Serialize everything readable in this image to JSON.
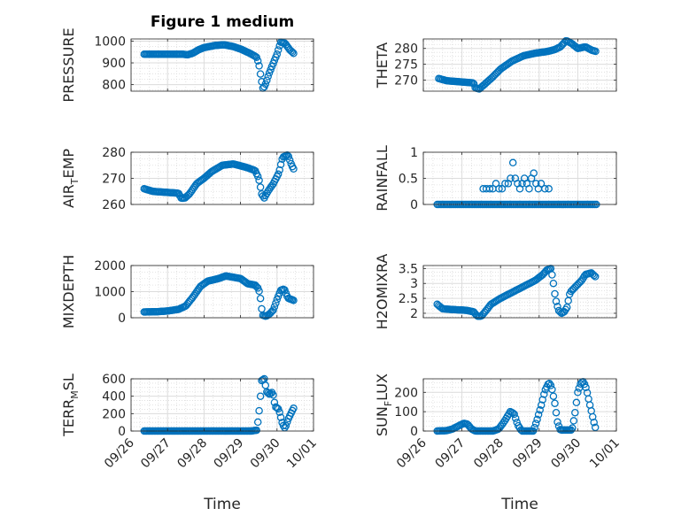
{
  "figure_title": "Figure 1 medium",
  "style": {
    "marker_color": "#0072BD",
    "grid_color": "#dcdcdc",
    "axis_color": "#262626"
  },
  "chart_data": [
    {
      "type": "scatter",
      "title": "Figure 1 medium",
      "ylabel": "PRESSURE",
      "ylim": [
        770,
        1010
      ],
      "yticks": [
        800,
        900,
        1000
      ],
      "ytick_labels": [
        "800",
        "900",
        "1000"
      ],
      "xlim": [
        0,
        5
      ],
      "grid": true,
      "keys": [
        [
          0.36,
          940
        ],
        [
          0.6,
          940
        ],
        [
          1.0,
          940
        ],
        [
          1.4,
          940
        ],
        [
          1.55,
          937
        ],
        [
          1.7,
          945
        ],
        [
          1.85,
          960
        ],
        [
          2.0,
          970
        ],
        [
          2.3,
          980
        ],
        [
          2.55,
          983
        ],
        [
          2.8,
          975
        ],
        [
          3.05,
          960
        ],
        [
          3.3,
          940
        ],
        [
          3.45,
          925
        ],
        [
          3.52,
          880
        ],
        [
          3.56,
          830
        ],
        [
          3.62,
          780
        ],
        [
          3.68,
          800
        ],
        [
          3.78,
          850
        ],
        [
          3.9,
          900
        ],
        [
          4.0,
          940
        ],
        [
          4.1,
          995
        ],
        [
          4.22,
          990
        ],
        [
          4.35,
          960
        ],
        [
          4.48,
          940
        ]
      ]
    },
    {
      "type": "scatter",
      "ylabel": "THETA",
      "ylim": [
        266.5,
        283
      ],
      "yticks": [
        270,
        275,
        280
      ],
      "ytick_labels": [
        "270",
        "275",
        "280"
      ],
      "xlim": [
        0,
        5
      ],
      "grid": true,
      "keys": [
        [
          0.4,
          270.5
        ],
        [
          0.6,
          269.8
        ],
        [
          1.0,
          269.4
        ],
        [
          1.3,
          269.1
        ],
        [
          1.35,
          267.5
        ],
        [
          1.45,
          267.2
        ],
        [
          1.6,
          268.8
        ],
        [
          1.8,
          271
        ],
        [
          2.0,
          273.5
        ],
        [
          2.3,
          276
        ],
        [
          2.6,
          277.7
        ],
        [
          2.9,
          278.5
        ],
        [
          3.2,
          279
        ],
        [
          3.4,
          279.6
        ],
        [
          3.55,
          280.5
        ],
        [
          3.7,
          282.5
        ],
        [
          3.85,
          281.5
        ],
        [
          4.0,
          280
        ],
        [
          4.2,
          280.5
        ],
        [
          4.35,
          279.5
        ],
        [
          4.48,
          279
        ]
      ]
    },
    {
      "type": "scatter",
      "ylabel": "AIR_TEMP",
      "ylim": [
        260,
        280
      ],
      "yticks": [
        260,
        270,
        280
      ],
      "ytick_labels": [
        "260",
        "270",
        "280"
      ],
      "xlim": [
        0,
        5
      ],
      "grid": true,
      "keys": [
        [
          0.36,
          266
        ],
        [
          0.6,
          265
        ],
        [
          1.0,
          264.6
        ],
        [
          1.3,
          264.3
        ],
        [
          1.38,
          262.3
        ],
        [
          1.48,
          262.5
        ],
        [
          1.6,
          264
        ],
        [
          1.8,
          268
        ],
        [
          2.0,
          270
        ],
        [
          2.2,
          272.5
        ],
        [
          2.5,
          275
        ],
        [
          2.8,
          275.5
        ],
        [
          3.0,
          274.8
        ],
        [
          3.2,
          274
        ],
        [
          3.4,
          273
        ],
        [
          3.5,
          270
        ],
        [
          3.58,
          264
        ],
        [
          3.65,
          262.5
        ],
        [
          3.75,
          265
        ],
        [
          3.9,
          268
        ],
        [
          4.05,
          272
        ],
        [
          4.15,
          278
        ],
        [
          4.3,
          279
        ],
        [
          4.4,
          275
        ],
        [
          4.48,
          273
        ]
      ]
    },
    {
      "type": "scatter",
      "ylabel": "RAINFALL",
      "ylim": [
        0,
        1
      ],
      "yticks": [
        0,
        0.5,
        1
      ],
      "ytick_labels": [
        "0",
        "0.5",
        "1"
      ],
      "xlim": [
        0,
        5
      ],
      "grid": true,
      "series": [
        {
          "x": [
            0.36,
            4.48
          ],
          "y": [
            0,
            0
          ],
          "step": 0.04
        },
        {
          "x": [
            1.55,
            1.63,
            1.72,
            1.8,
            1.88,
            1.96,
            2.04,
            2.12,
            2.2,
            2.26,
            2.32,
            2.38,
            2.44,
            2.5,
            2.56,
            2.62,
            2.68,
            2.74,
            2.8,
            2.86,
            2.92,
            2.98,
            3.05,
            3.15,
            3.25
          ],
          "y": [
            0.3,
            0.3,
            0.3,
            0.3,
            0.4,
            0.3,
            0.3,
            0.4,
            0.4,
            0.5,
            0.8,
            0.5,
            0.4,
            0.3,
            0.4,
            0.5,
            0.4,
            0.3,
            0.5,
            0.6,
            0.4,
            0.3,
            0.4,
            0.3,
            0.3
          ]
        }
      ]
    },
    {
      "type": "scatter",
      "ylabel": "MIXDEPTH",
      "ylim": [
        0,
        2000
      ],
      "yticks": [
        0,
        1000,
        2000
      ],
      "ytick_labels": [
        "0",
        "1000",
        "2000"
      ],
      "xlim": [
        0,
        5
      ],
      "grid": true,
      "keys": [
        [
          0.36,
          220
        ],
        [
          0.7,
          230
        ],
        [
          1.0,
          260
        ],
        [
          1.3,
          320
        ],
        [
          1.5,
          450
        ],
        [
          1.7,
          800
        ],
        [
          1.9,
          1200
        ],
        [
          2.1,
          1400
        ],
        [
          2.4,
          1500
        ],
        [
          2.6,
          1600
        ],
        [
          2.8,
          1550
        ],
        [
          3.0,
          1500
        ],
        [
          3.2,
          1300
        ],
        [
          3.4,
          1250
        ],
        [
          3.5,
          1100
        ],
        [
          3.55,
          700
        ],
        [
          3.6,
          100
        ],
        [
          3.7,
          50
        ],
        [
          3.8,
          150
        ],
        [
          3.9,
          300
        ],
        [
          4.0,
          700
        ],
        [
          4.1,
          1050
        ],
        [
          4.2,
          1100
        ],
        [
          4.3,
          750
        ],
        [
          4.48,
          650
        ]
      ]
    },
    {
      "type": "scatter",
      "ylabel": "H2OMIXRA",
      "ylim": [
        1.85,
        3.6
      ],
      "yticks": [
        2,
        2.5,
        3,
        3.5
      ],
      "ytick_labels": [
        "2",
        "2.5",
        "3",
        "3.5"
      ],
      "xlim": [
        0,
        5
      ],
      "grid": true,
      "keys": [
        [
          0.36,
          2.3
        ],
        [
          0.5,
          2.15
        ],
        [
          0.8,
          2.12
        ],
        [
          1.1,
          2.1
        ],
        [
          1.3,
          2.05
        ],
        [
          1.4,
          1.9
        ],
        [
          1.5,
          1.9
        ],
        [
          1.6,
          2.05
        ],
        [
          1.75,
          2.3
        ],
        [
          2.0,
          2.5
        ],
        [
          2.3,
          2.7
        ],
        [
          2.6,
          2.9
        ],
        [
          2.9,
          3.1
        ],
        [
          3.1,
          3.3
        ],
        [
          3.2,
          3.45
        ],
        [
          3.3,
          3.5
        ],
        [
          3.35,
          3.2
        ],
        [
          3.42,
          2.5
        ],
        [
          3.5,
          2.1
        ],
        [
          3.58,
          2.0
        ],
        [
          3.65,
          2.05
        ],
        [
          3.72,
          2.2
        ],
        [
          3.8,
          2.7
        ],
        [
          3.95,
          2.9
        ],
        [
          4.1,
          3.1
        ],
        [
          4.2,
          3.3
        ],
        [
          4.35,
          3.35
        ],
        [
          4.48,
          3.2
        ]
      ]
    },
    {
      "type": "scatter",
      "ylabel": "TERR_MSL",
      "ylim": [
        0,
        600
      ],
      "yticks": [
        0,
        200,
        400,
        600
      ],
      "ytick_labels": [
        "0",
        "200",
        "400",
        "600"
      ],
      "xlim": [
        0,
        5
      ],
      "grid": true,
      "xticks": [
        0,
        1,
        2,
        3,
        4,
        5
      ],
      "xtick_labels": [
        "09/26",
        "09/27",
        "09/28",
        "09/29",
        "09/30",
        "10/01"
      ],
      "xlabel": "Time",
      "keys": [
        [
          0.36,
          0
        ],
        [
          3.3,
          0
        ],
        [
          3.45,
          10
        ],
        [
          3.52,
          270
        ],
        [
          3.58,
          580
        ],
        [
          3.65,
          600
        ],
        [
          3.72,
          450
        ],
        [
          3.8,
          420
        ],
        [
          3.88,
          450
        ],
        [
          3.95,
          280
        ],
        [
          4.05,
          250
        ],
        [
          4.15,
          80
        ],
        [
          4.22,
          30
        ],
        [
          4.3,
          130
        ],
        [
          4.4,
          220
        ],
        [
          4.48,
          280
        ]
      ]
    },
    {
      "type": "scatter",
      "ylabel": "SUN_FLUX",
      "ylim": [
        0,
        270
      ],
      "yticks": [
        0,
        100,
        200
      ],
      "ytick_labels": [
        "0",
        "100",
        "200"
      ],
      "xlim": [
        0,
        5
      ],
      "grid": true,
      "xticks": [
        0,
        1,
        2,
        3,
        4,
        5
      ],
      "xtick_labels": [
        "09/26",
        "09/27",
        "09/28",
        "09/29",
        "09/30",
        "10/01"
      ],
      "xlabel": "Time",
      "keys": [
        [
          0.36,
          0
        ],
        [
          0.6,
          2
        ],
        [
          0.75,
          10
        ],
        [
          0.9,
          25
        ],
        [
          1.05,
          40
        ],
        [
          1.15,
          35
        ],
        [
          1.25,
          10
        ],
        [
          1.35,
          0
        ],
        [
          1.8,
          0
        ],
        [
          1.95,
          10
        ],
        [
          2.1,
          50
        ],
        [
          2.25,
          100
        ],
        [
          2.35,
          90
        ],
        [
          2.45,
          30
        ],
        [
          2.55,
          0
        ],
        [
          2.85,
          0
        ],
        [
          2.95,
          60
        ],
        [
          3.05,
          130
        ],
        [
          3.15,
          210
        ],
        [
          3.25,
          250
        ],
        [
          3.32,
          230
        ],
        [
          3.4,
          150
        ],
        [
          3.48,
          40
        ],
        [
          3.55,
          5
        ],
        [
          3.85,
          5
        ],
        [
          3.92,
          80
        ],
        [
          4.0,
          200
        ],
        [
          4.08,
          250
        ],
        [
          4.15,
          255
        ],
        [
          4.22,
          220
        ],
        [
          4.32,
          130
        ],
        [
          4.4,
          60
        ],
        [
          4.48,
          0
        ]
      ]
    }
  ]
}
